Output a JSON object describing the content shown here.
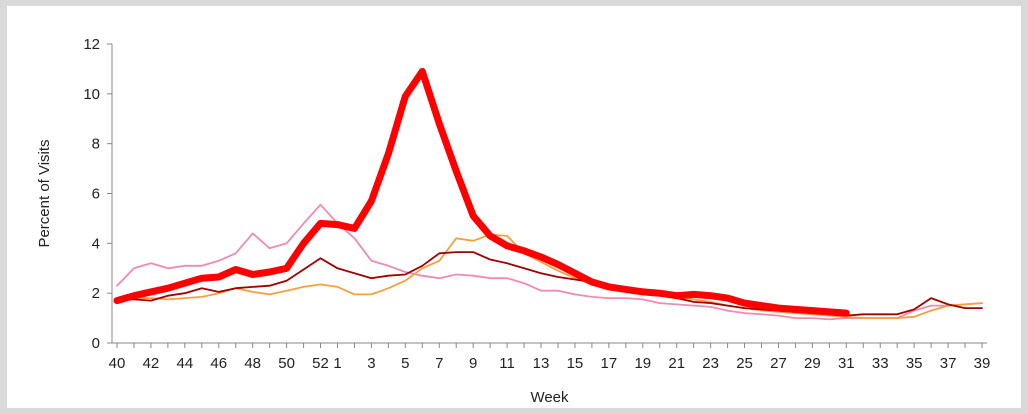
{
  "chart_data": {
    "type": "line",
    "title": "",
    "xlabel": "Week",
    "ylabel": "Percent of Visits",
    "ylim": [
      0,
      12
    ],
    "yticks": [
      "0",
      "2",
      "4",
      "6",
      "8",
      "10",
      "12"
    ],
    "x_tick_labels": [
      "40",
      "42",
      "44",
      "46",
      "48",
      "50",
      "52",
      "1",
      "3",
      "5",
      "7",
      "9",
      "11",
      "13",
      "15",
      "17",
      "19",
      "21",
      "23",
      "25",
      "27",
      "29",
      "31",
      "33",
      "35",
      "37",
      "39"
    ],
    "categories": [
      "40",
      "41",
      "42",
      "43",
      "44",
      "45",
      "46",
      "47",
      "48",
      "49",
      "50",
      "51",
      "52",
      "1",
      "2",
      "3",
      "4",
      "5",
      "6",
      "7",
      "8",
      "9",
      "10",
      "11",
      "12",
      "13",
      "14",
      "15",
      "16",
      "17",
      "18",
      "19",
      "20",
      "21",
      "22",
      "23",
      "24",
      "25",
      "26",
      "27",
      "28",
      "29",
      "30",
      "31",
      "32",
      "33",
      "34",
      "35",
      "36",
      "37",
      "38",
      "39"
    ],
    "grid": false,
    "legend": "none",
    "series": [
      {
        "color": "#ff0000",
        "emphasis": true,
        "values": [
          1.7,
          1.9,
          2.05,
          2.2,
          2.4,
          2.6,
          2.65,
          2.95,
          2.75,
          2.85,
          3.0,
          4.0,
          4.8,
          4.75,
          4.6,
          5.7,
          7.6,
          9.9,
          10.9,
          8.8,
          6.9,
          5.1,
          4.3,
          3.9,
          3.7,
          3.45,
          3.15,
          2.8,
          2.45,
          2.25,
          2.15,
          2.05,
          2.0,
          1.9,
          1.95,
          1.9,
          1.8,
          1.6,
          1.5,
          1.4,
          1.35,
          1.3,
          1.25,
          1.2,
          null,
          null,
          null,
          null,
          null,
          null,
          null,
          null
        ]
      },
      {
        "color": "#f08ab0",
        "values": [
          2.3,
          3.0,
          3.2,
          3.0,
          3.1,
          3.1,
          3.3,
          3.6,
          4.4,
          3.8,
          4.0,
          4.8,
          5.55,
          4.8,
          4.2,
          3.3,
          3.1,
          2.85,
          2.7,
          2.6,
          2.75,
          2.7,
          2.6,
          2.6,
          2.4,
          2.1,
          2.1,
          1.95,
          1.85,
          1.8,
          1.8,
          1.75,
          1.6,
          1.55,
          1.5,
          1.45,
          1.3,
          1.2,
          1.15,
          1.1,
          1.0,
          1.0,
          0.95,
          1.0,
          1.0,
          1.0,
          1.0,
          1.3,
          1.5,
          1.5,
          1.55,
          1.6
        ]
      },
      {
        "color": "#f4a040",
        "values": [
          1.7,
          1.8,
          1.8,
          1.75,
          1.8,
          1.85,
          2.0,
          2.2,
          2.05,
          1.95,
          2.1,
          2.25,
          2.35,
          2.25,
          1.95,
          1.95,
          2.2,
          2.5,
          3.0,
          3.3,
          4.2,
          4.1,
          4.35,
          4.3,
          3.6,
          3.25,
          2.9,
          2.6,
          2.35,
          2.2,
          2.1,
          2.0,
          1.9,
          1.85,
          1.75,
          1.65,
          1.5,
          1.4,
          1.3,
          1.25,
          1.2,
          1.15,
          1.1,
          1.05,
          1.0,
          1.0,
          1.0,
          1.05,
          1.3,
          1.5,
          1.55,
          1.6
        ]
      },
      {
        "color": "#a00000",
        "values": [
          1.75,
          1.75,
          1.7,
          1.9,
          2.0,
          2.2,
          2.05,
          2.2,
          2.25,
          2.3,
          2.5,
          2.95,
          3.4,
          3.0,
          2.8,
          2.6,
          2.7,
          2.75,
          3.1,
          3.6,
          3.65,
          3.65,
          3.35,
          3.2,
          3.0,
          2.8,
          2.65,
          2.55,
          2.45,
          2.3,
          2.2,
          2.1,
          1.95,
          1.8,
          1.65,
          1.6,
          1.5,
          1.4,
          1.35,
          1.3,
          1.25,
          1.2,
          1.15,
          1.1,
          1.15,
          1.15,
          1.15,
          1.35,
          1.8,
          1.55,
          1.4,
          1.4
        ]
      }
    ]
  }
}
